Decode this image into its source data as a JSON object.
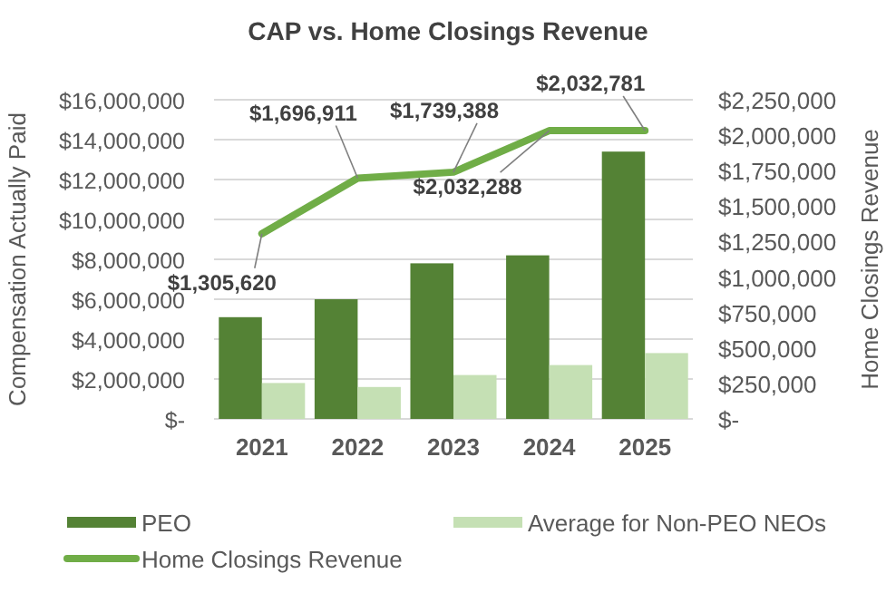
{
  "chart_data": {
    "type": "bar",
    "title": "CAP vs. Home Closings Revenue",
    "ylabel": "Compensation Actually Paid",
    "y2label": "Home Closings Revenue",
    "categories": [
      "2021",
      "2022",
      "2023",
      "2024",
      "2025"
    ],
    "series": [
      {
        "name": "PEO",
        "color": "#548235",
        "values": [
          5100000,
          6000000,
          7800000,
          8200000,
          13400000
        ]
      },
      {
        "name": "Average for Non-PEO NEOs",
        "color": "#c5e0b4",
        "values": [
          1800000,
          1600000,
          2200000,
          2700000,
          3300000
        ]
      },
      {
        "name": "Home Closings Revenue",
        "type": "line",
        "axis": "y2",
        "color": "#70ad47",
        "values": [
          1305620,
          1696911,
          1739388,
          2032288,
          2032781
        ],
        "value_labels": [
          "$1,305,620",
          "$1,696,911",
          "$1,739,388",
          "$2,032,288",
          "$2,032,781"
        ]
      }
    ],
    "ylim": [
      0,
      16000000
    ],
    "yticks": [
      {
        "value": 0,
        "label": "$-"
      },
      {
        "value": 2000000,
        "label": "$2,000,000"
      },
      {
        "value": 4000000,
        "label": "$4,000,000"
      },
      {
        "value": 6000000,
        "label": "$6,000,000"
      },
      {
        "value": 8000000,
        "label": "$8,000,000"
      },
      {
        "value": 10000000,
        "label": "$10,000,000"
      },
      {
        "value": 12000000,
        "label": "$12,000,000"
      },
      {
        "value": 14000000,
        "label": "$14,000,000"
      },
      {
        "value": 16000000,
        "label": "$16,000,000"
      }
    ],
    "y2lim": [
      0,
      2250000
    ],
    "y2ticks": [
      {
        "value": 0,
        "label": "$-"
      },
      {
        "value": 250000,
        "label": "$250,000"
      },
      {
        "value": 500000,
        "label": "$500,000"
      },
      {
        "value": 750000,
        "label": "$750,000"
      },
      {
        "value": 1000000,
        "label": "$1,000,000"
      },
      {
        "value": 1250000,
        "label": "$1,250,000"
      },
      {
        "value": 1500000,
        "label": "$1,500,000"
      },
      {
        "value": 1750000,
        "label": "$1,750,000"
      },
      {
        "value": 2000000,
        "label": "$2,000,000"
      },
      {
        "value": 2250000,
        "label": "$2,250,000"
      }
    ],
    "grid": "y",
    "legend": "bottom"
  }
}
